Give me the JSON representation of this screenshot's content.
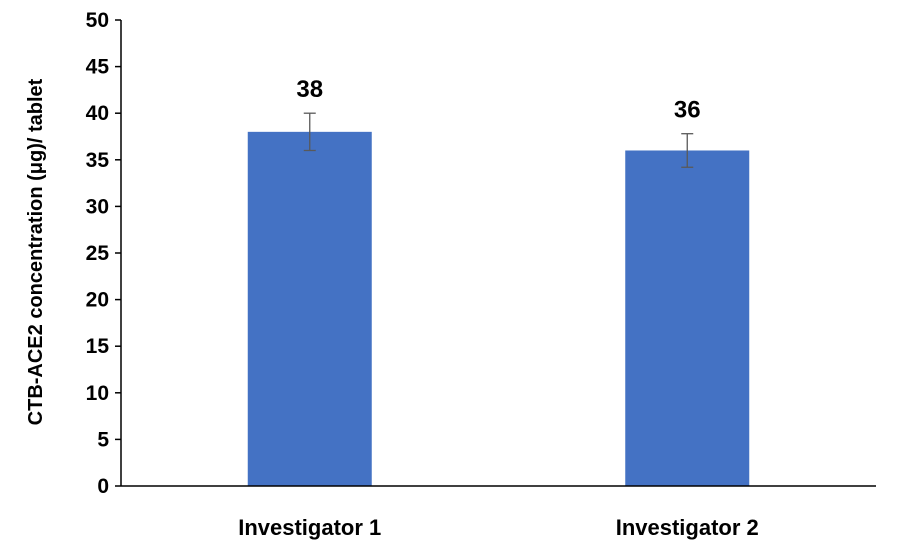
{
  "chart_data": {
    "type": "bar",
    "title": "",
    "xlabel": "",
    "ylabel": "CTB-ACE2 concentration (μg)/ tablet",
    "categories": [
      "Investigator 1",
      "Investigator 2"
    ],
    "values": [
      38,
      36
    ],
    "data_labels": [
      "38",
      "36"
    ],
    "error_bars": [
      2,
      1.8
    ],
    "ylim": [
      0,
      50
    ],
    "yticks": [
      "0",
      "5",
      "10",
      "15",
      "20",
      "25",
      "30",
      "35",
      "40",
      "45",
      "50"
    ],
    "grid": false,
    "legend": "none",
    "bar_color": "#4472C4",
    "error_bar_color": "#595959"
  }
}
